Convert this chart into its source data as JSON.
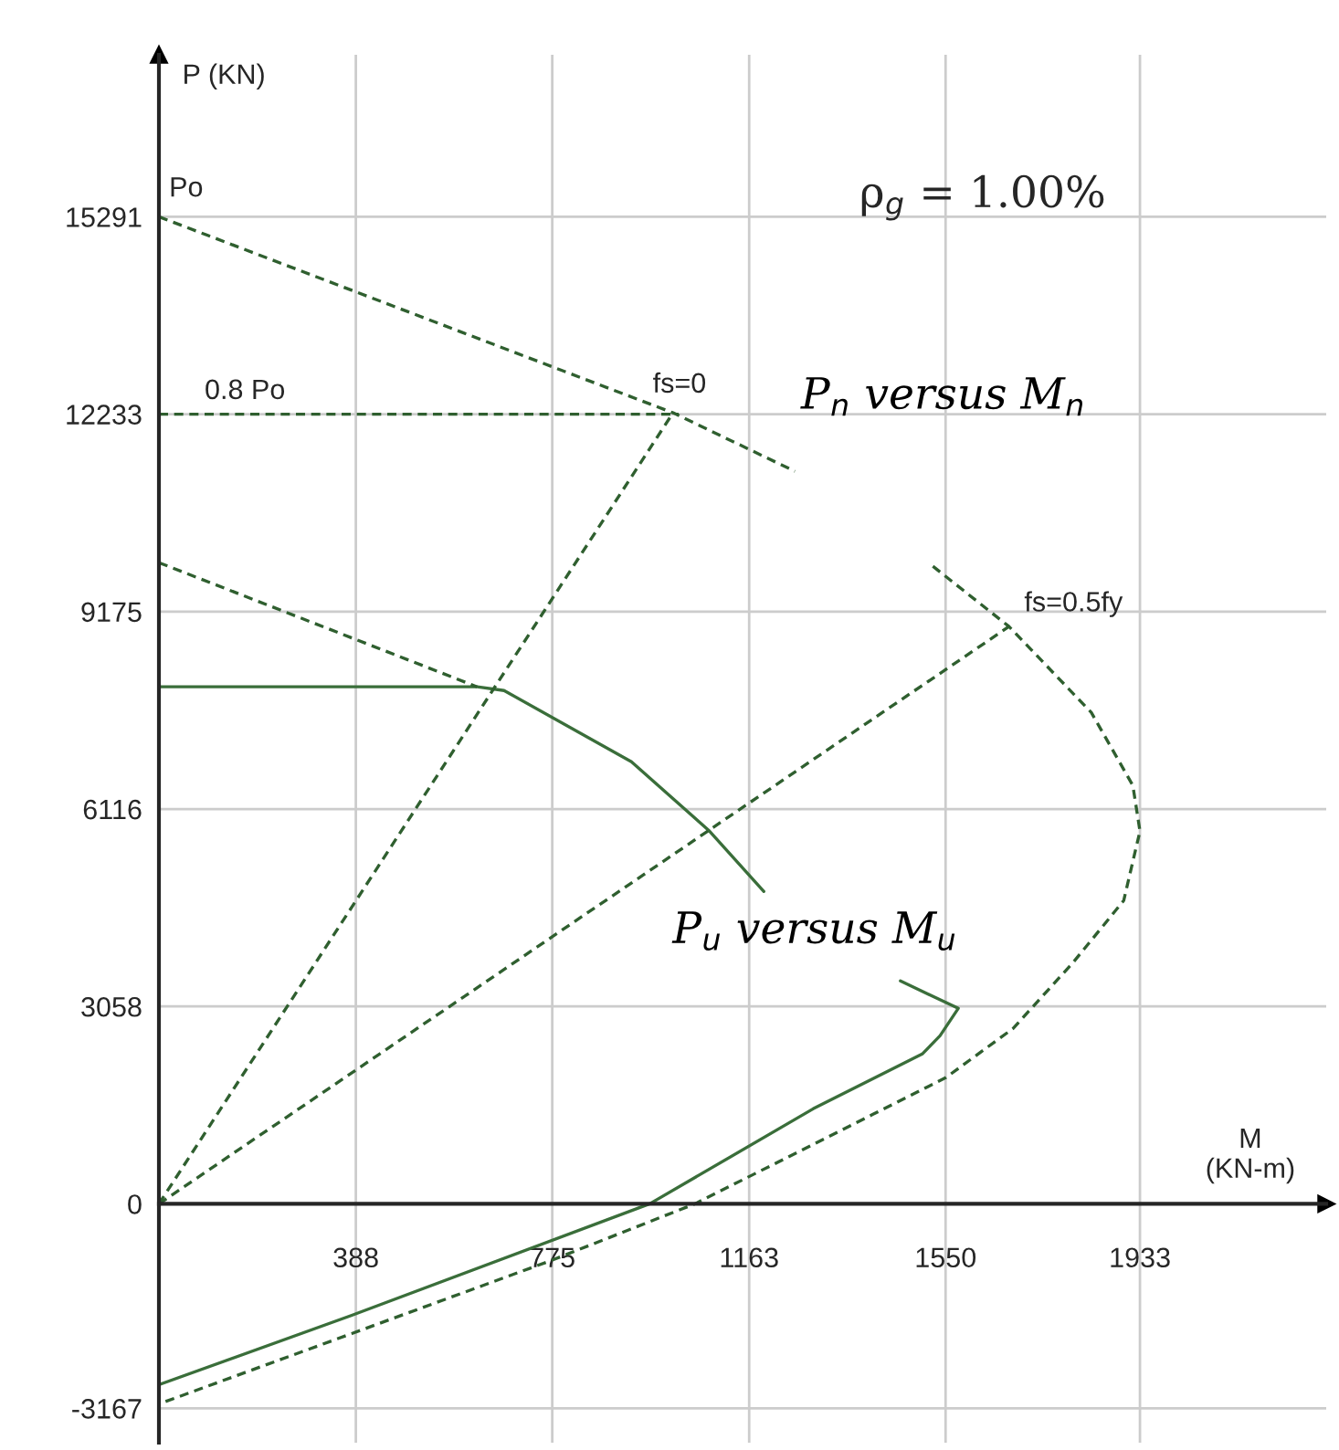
{
  "chart_data": {
    "type": "line",
    "xlabel": "M\n(KN-m)",
    "ylabel": "P (KN)",
    "xlim": [
      0,
      2300
    ],
    "ylim": [
      -3700,
      17800
    ],
    "xticks": [
      {
        "value": 0,
        "label": null
      },
      388,
      775,
      1163,
      1550,
      1933
    ],
    "yticks": [
      -3167,
      0,
      3058,
      6116,
      9175,
      12233,
      15291
    ],
    "grid": true,
    "series": [
      {
        "name": "P$_{n}$ versus M$_{n}$",
        "color": "#2f5f2f",
        "line_style": "dashed",
        "x": [
          0,
          1013,
          1253,
          1390,
          1525,
          1675,
          1837,
          1919,
          1933,
          1901,
          1801,
          1683,
          1550,
          1407,
          1056,
          773,
          380,
          0
        ],
        "values": [
          15291,
          12254,
          11348,
          null,
          9877,
          8943,
          7613,
          6481,
          5773,
          4698,
          3736,
          2717,
          1953,
          1387,
          0,
          -877,
          -2009,
          -3100
        ]
      },
      {
        "name": "P$_{u}$ versus M$_{u}$",
        "color": "#3a6e3a",
        "line_style": "solid",
        "x": [
          0,
          627,
          680,
          931,
          1085,
          1192,
          1300,
          1461,
          1575,
          1539,
          1504,
          1289,
          967,
          380,
          0
        ],
        "values": [
          8009,
          8009,
          7952,
          6849,
          5773,
          4839,
          null,
          3453,
          3028,
          2604,
          2321,
          1472,
          0,
          -1726,
          -2802
        ]
      },
      {
        "color": "#2f5f2f",
        "line_style": "dashed",
        "x": [
          0,
          627
        ],
        "values": [
          9933,
          8009
        ]
      },
      {
        "color": "#2f5f2f",
        "line_style": "dashed",
        "x": [
          0,
          1024
        ],
        "values": [
          12233,
          12233
        ]
      },
      {
        "color": "#2f5f2f",
        "line_style": "dashed",
        "x": [
          0,
          1013
        ],
        "values": [
          0,
          12254
        ]
      },
      {
        "color": "#2f5f2f",
        "line_style": "dashed",
        "x": [
          0,
          1675
        ],
        "values": [
          0,
          8943
        ]
      }
    ],
    "annotations": [
      {
        "text": "Po",
        "x": 0,
        "y": 15291
      },
      {
        "text": "0.8 Po",
        "x": 0,
        "y": 12233
      },
      {
        "text": "fs=0",
        "x": 1013,
        "y": 12254
      },
      {
        "text": "fs=0.5fy",
        "x": 1675,
        "y": 8943
      },
      "ρ$_{g}$ = 1.00%"
    ]
  }
}
